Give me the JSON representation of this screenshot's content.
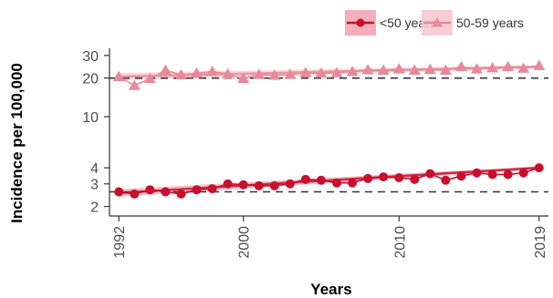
{
  "chart_data": {
    "type": "line",
    "xlabel": "Years",
    "ylabel": "Incidence per 100,000",
    "y_scale": "log",
    "xlim": [
      1991.4,
      2019.6
    ],
    "ylim": [
      1.86,
      33
    ],
    "x_ticks": [
      1992,
      2000,
      2010,
      2019
    ],
    "y_ticks": [
      2,
      3,
      4,
      10,
      20,
      30
    ],
    "reference_lines": [
      20,
      2.6
    ],
    "legend_position": "top-right",
    "grid": false,
    "x": [
      1992,
      1993,
      1994,
      1995,
      1996,
      1997,
      1998,
      1999,
      2000,
      2001,
      2002,
      2003,
      2004,
      2005,
      2006,
      2007,
      2008,
      2009,
      2010,
      2011,
      2012,
      2013,
      2014,
      2015,
      2016,
      2017,
      2018,
      2019
    ],
    "series": [
      {
        "name": "<50 years",
        "marker": "circle",
        "color": "#c8102e",
        "band_color": "#f2a7b4",
        "values": [
          2.6,
          2.5,
          2.7,
          2.6,
          2.5,
          2.7,
          2.75,
          3.0,
          2.95,
          2.9,
          2.9,
          3.0,
          3.25,
          3.2,
          3.05,
          3.05,
          3.3,
          3.4,
          3.35,
          3.25,
          3.6,
          3.2,
          3.45,
          3.65,
          3.55,
          3.55,
          3.65,
          4.0
        ],
        "fit": [
          2.55,
          4.0
        ]
      },
      {
        "name": "50-59 years",
        "marker": "triangle",
        "color": "#e8899a",
        "band_color": "#f7c9d2",
        "values": [
          20.5,
          17.5,
          19.8,
          23.0,
          21.2,
          21.8,
          22.5,
          21.5,
          19.8,
          21.3,
          21.0,
          21.3,
          22.0,
          21.8,
          22.0,
          22.5,
          23.2,
          23.0,
          23.5,
          23.0,
          23.3,
          23.0,
          24.5,
          23.5,
          24.0,
          24.5,
          23.8,
          25.0
        ],
        "fit": [
          20.5,
          24.5
        ]
      }
    ]
  },
  "colors": {
    "reference_line": "#333333",
    "axis": "#333333",
    "background": "#ffffff"
  }
}
